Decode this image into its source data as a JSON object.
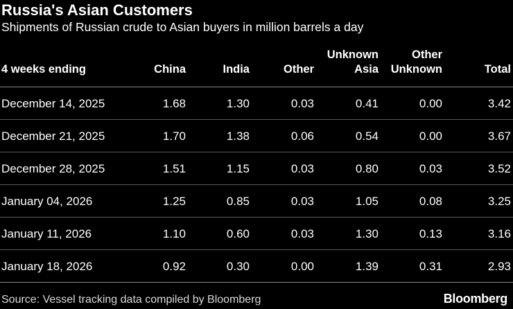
{
  "chart_data": {
    "type": "table",
    "title": "Russia's Asian Customers",
    "subtitle": "Shipments of Russian crude to Asian buyers in million barrels a day",
    "columns": [
      "4 weeks ending",
      "China",
      "India",
      "Other",
      "Unknown Asia",
      "Other Unknown",
      "Total"
    ],
    "header_lines": [
      [
        "4 weeks ending"
      ],
      [
        "China"
      ],
      [
        "India"
      ],
      [
        "Other"
      ],
      [
        "Unknown",
        "Asia"
      ],
      [
        "Other",
        "Unknown"
      ],
      [
        "Total"
      ]
    ],
    "rows": [
      [
        "December 14, 2025",
        "1.68",
        "1.30",
        "0.03",
        "0.41",
        "0.00",
        "3.42"
      ],
      [
        "December 21, 2025",
        "1.70",
        "1.38",
        "0.06",
        "0.54",
        "0.00",
        "3.67"
      ],
      [
        "December 28, 2025",
        "1.51",
        "1.15",
        "0.03",
        "0.80",
        "0.03",
        "3.52"
      ],
      [
        "January 04, 2026",
        "1.25",
        "0.85",
        "0.03",
        "1.05",
        "0.08",
        "3.25"
      ],
      [
        "January 11, 2026",
        "1.10",
        "0.60",
        "0.03",
        "1.30",
        "0.13",
        "3.16"
      ],
      [
        "January 18, 2026",
        "0.92",
        "0.30",
        "0.00",
        "1.39",
        "0.31",
        "2.93"
      ]
    ],
    "source": "Source: Vessel tracking data compiled by Bloomberg",
    "brand": "Bloomberg"
  },
  "colors": {
    "background": "#000000",
    "text": "#ffffff",
    "rule": "#5a5a5a"
  }
}
